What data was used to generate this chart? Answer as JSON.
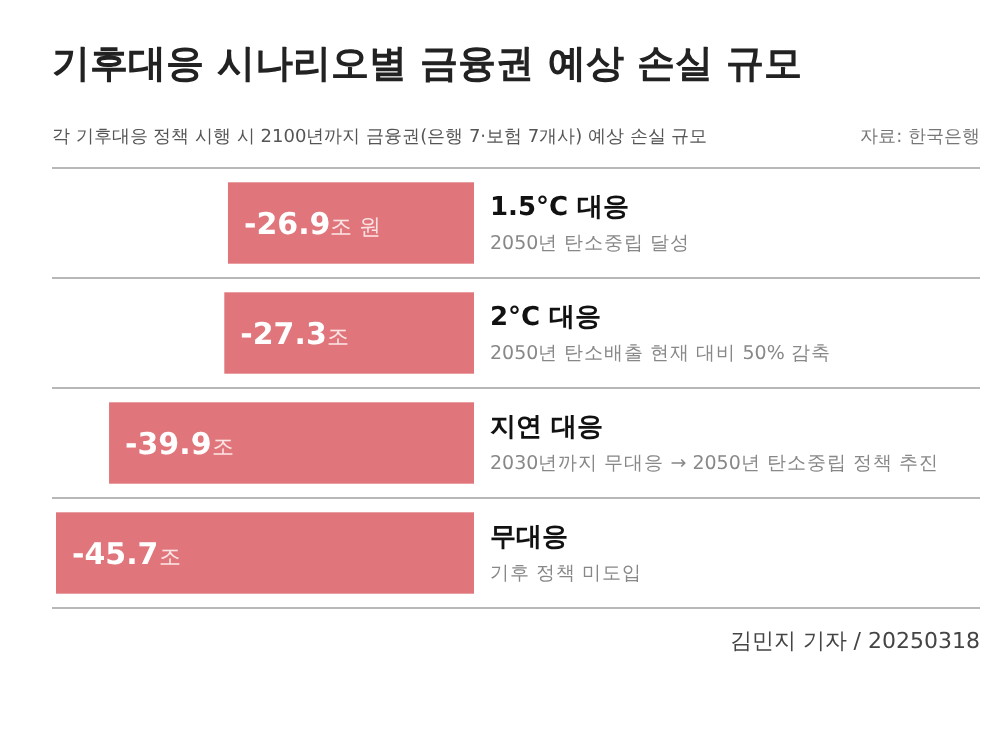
{
  "chart_data": {
    "type": "bar",
    "orientation": "horizontal",
    "title": "기후대응 시나리오별 금융권 예상 손실 규모",
    "subtitle": "각 기후대응 정책 시행 시 2100년까지 금융권(은행 7·보험 7개사) 예상 손실 규모",
    "categories": [
      "1.5°C 대응",
      "2°C 대응",
      "지연 대응",
      "무대응"
    ],
    "values": [
      -26.9,
      -27.3,
      -39.9,
      -45.7
    ],
    "color": "#e0767b",
    "value_labels": [
      "-26.9조 원",
      "-27.3조",
      "-39.9조",
      "-45.7조"
    ],
    "annotations": [
      "2050년 탄소중립 달성",
      "2050년 탄소배출 현재 대비 50% 감축",
      "2030년까지 무대응 → 2050년 탄소중립 정책 추진",
      "기후 정책 미도입",
      "자료: 한국은행",
      "김민지 기자 / 20250318"
    ]
  }
}
